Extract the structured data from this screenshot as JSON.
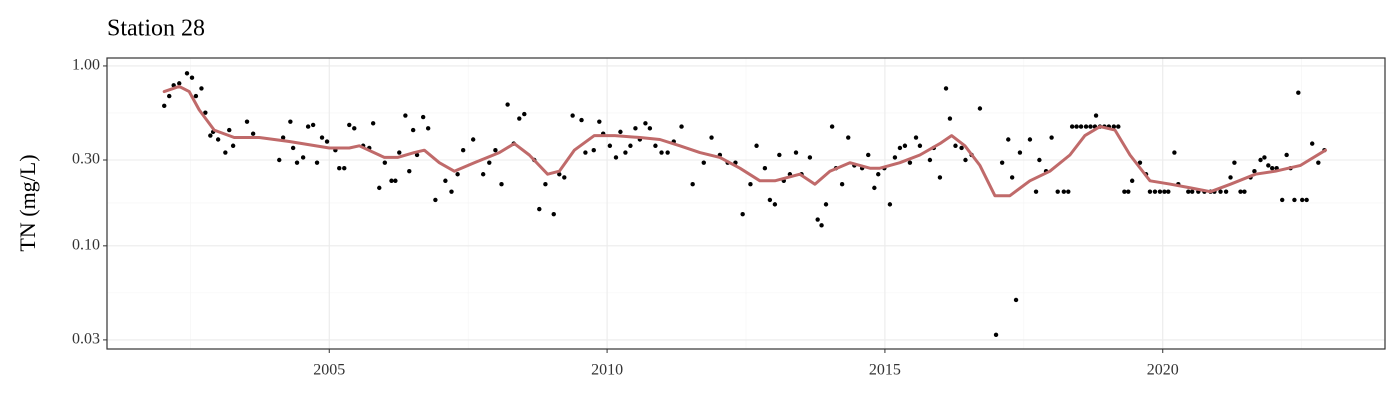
{
  "chart_data": {
    "type": "scatter",
    "title": "Station 28",
    "y_label": "TN (mg/L)",
    "log_y": true,
    "grid": true,
    "xlim": [
      2001,
      2024
    ],
    "ylim": [
      0.0267,
      1.107
    ],
    "xticks": [
      2005,
      2010,
      2015,
      2020
    ],
    "yticks": [
      {
        "value": 0.03,
        "label": "0.03"
      },
      {
        "value": 0.1,
        "label": "0.10"
      },
      {
        "value": 0.3,
        "label": "0.30"
      },
      {
        "value": 1,
        "label": "1.00"
      }
    ],
    "points": {
      "color": "#000000",
      "x": [
        2002.03,
        2002.12,
        2002.2,
        2002.3,
        2002.44,
        2002.53,
        2002.6,
        2002.7,
        2002.77,
        2002.86,
        2002.91,
        2003.0,
        2003.13,
        2003.2,
        2003.27,
        2003.52,
        2003.63,
        2004.1,
        2004.17,
        2004.3,
        2004.35,
        2004.42,
        2004.53,
        2004.62,
        2004.71,
        2004.78,
        2004.87,
        2004.96,
        2005.11,
        2005.18,
        2005.27,
        2005.36,
        2005.45,
        2005.61,
        2005.72,
        2005.79,
        2005.9,
        2006.0,
        2006.12,
        2006.19,
        2006.26,
        2006.37,
        2006.44,
        2006.51,
        2006.58,
        2006.69,
        2006.78,
        2006.91,
        2007.09,
        2007.2,
        2007.31,
        2007.41,
        2007.59,
        2007.77,
        2007.88,
        2007.99,
        2008.1,
        2008.21,
        2008.32,
        2008.42,
        2008.51,
        2008.69,
        2008.78,
        2008.89,
        2009.04,
        2009.14,
        2009.23,
        2009.38,
        2009.54,
        2009.61,
        2009.76,
        2009.86,
        2009.93,
        2010.05,
        2010.16,
        2010.24,
        2010.33,
        2010.42,
        2010.51,
        2010.59,
        2010.69,
        2010.77,
        2010.87,
        2010.98,
        2011.09,
        2011.2,
        2011.34,
        2011.54,
        2011.74,
        2011.88,
        2012.03,
        2012.17,
        2012.31,
        2012.44,
        2012.58,
        2012.69,
        2012.84,
        2012.93,
        2013.02,
        2013.1,
        2013.18,
        2013.29,
        2013.4,
        2013.5,
        2013.65,
        2013.79,
        2013.86,
        2013.94,
        2014.05,
        2014.12,
        2014.23,
        2014.34,
        2014.45,
        2014.59,
        2014.7,
        2014.81,
        2014.88,
        2014.99,
        2015.09,
        2015.18,
        2015.27,
        2015.36,
        2015.45,
        2015.56,
        2015.63,
        2015.81,
        2015.88,
        2015.99,
        2016.1,
        2016.17,
        2016.27,
        2016.38,
        2016.45,
        2016.56,
        2016.71,
        2017.0,
        2017.11,
        2017.22,
        2017.29,
        2017.36,
        2017.43,
        2017.61,
        2017.72,
        2017.78,
        2017.9,
        2018.0,
        2018.11,
        2018.22,
        2018.3,
        2018.37,
        2018.45,
        2018.53,
        2018.62,
        2018.7,
        2018.78,
        2018.8,
        2018.87,
        2018.95,
        2019.03,
        2019.12,
        2019.2,
        2019.31,
        2019.38,
        2019.45,
        2019.59,
        2019.7,
        2019.77,
        2019.86,
        2019.95,
        2020.03,
        2020.1,
        2020.21,
        2020.28,
        2020.46,
        2020.53,
        2020.64,
        2020.75,
        2020.86,
        2020.93,
        2021.04,
        2021.14,
        2021.22,
        2021.29,
        2021.4,
        2021.47,
        2021.58,
        2021.65,
        2021.76,
        2021.83,
        2021.9,
        2021.97,
        2022.05,
        2022.15,
        2022.23,
        2022.3,
        2022.37,
        2022.44,
        2022.51,
        2022.59,
        2022.69,
        2022.8,
        2022.91
      ],
      "y": [
        0.6,
        0.68,
        0.78,
        0.8,
        0.91,
        0.86,
        0.68,
        0.75,
        0.55,
        0.41,
        0.43,
        0.39,
        0.33,
        0.44,
        0.36,
        0.49,
        0.42,
        0.3,
        0.4,
        0.49,
        0.35,
        0.29,
        0.31,
        0.46,
        0.47,
        0.29,
        0.4,
        0.38,
        0.34,
        0.27,
        0.27,
        0.47,
        0.45,
        0.36,
        0.35,
        0.48,
        0.21,
        0.29,
        0.23,
        0.23,
        0.33,
        0.53,
        0.26,
        0.44,
        0.32,
        0.52,
        0.45,
        0.18,
        0.23,
        0.2,
        0.25,
        0.34,
        0.39,
        0.25,
        0.29,
        0.34,
        0.22,
        0.61,
        0.37,
        0.51,
        0.54,
        0.3,
        0.16,
        0.22,
        0.15,
        0.25,
        0.24,
        0.53,
        0.5,
        0.33,
        0.34,
        0.49,
        0.42,
        0.36,
        0.31,
        0.43,
        0.33,
        0.36,
        0.45,
        0.39,
        0.48,
        0.45,
        0.36,
        0.33,
        0.33,
        0.38,
        0.46,
        0.22,
        0.29,
        0.4,
        0.32,
        0.29,
        0.29,
        0.15,
        0.22,
        0.36,
        0.27,
        0.18,
        0.17,
        0.32,
        0.23,
        0.25,
        0.33,
        0.25,
        0.31,
        0.14,
        0.13,
        0.17,
        0.46,
        0.27,
        0.22,
        0.4,
        0.28,
        0.27,
        0.32,
        0.21,
        0.25,
        0.27,
        0.17,
        0.31,
        0.35,
        0.36,
        0.29,
        0.4,
        0.36,
        0.3,
        0.35,
        0.24,
        0.75,
        0.51,
        0.36,
        0.35,
        0.3,
        0.32,
        0.58,
        0.032,
        0.29,
        0.39,
        0.24,
        0.05,
        0.33,
        0.39,
        0.2,
        0.3,
        0.26,
        0.4,
        0.2,
        0.2,
        0.2,
        0.46,
        0.46,
        0.46,
        0.46,
        0.46,
        0.46,
        0.53,
        0.46,
        0.46,
        0.46,
        0.46,
        0.46,
        0.2,
        0.2,
        0.23,
        0.29,
        0.25,
        0.2,
        0.2,
        0.2,
        0.2,
        0.2,
        0.33,
        0.22,
        0.2,
        0.2,
        0.2,
        0.2,
        0.2,
        0.2,
        0.2,
        0.2,
        0.24,
        0.29,
        0.2,
        0.2,
        0.24,
        0.26,
        0.3,
        0.31,
        0.28,
        0.27,
        0.27,
        0.18,
        0.32,
        0.27,
        0.18,
        0.71,
        0.18,
        0.18,
        0.37,
        0.29,
        0.34
      ]
    },
    "smooth": {
      "color": "#c06a6a",
      "x": [
        2002.03,
        2002.3,
        2002.48,
        2002.66,
        2002.93,
        2003.29,
        2003.74,
        2004.28,
        2005.0,
        2005.36,
        2005.54,
        2005.99,
        2006.23,
        2006.53,
        2006.71,
        2006.98,
        2007.25,
        2007.61,
        2008.06,
        2008.33,
        2008.6,
        2008.93,
        2009.14,
        2009.41,
        2009.77,
        2010.14,
        2010.59,
        2010.95,
        2011.31,
        2011.67,
        2012.03,
        2012.39,
        2012.75,
        2013.02,
        2013.47,
        2013.74,
        2014.01,
        2014.37,
        2014.73,
        2014.91,
        2015.27,
        2015.63,
        2015.99,
        2016.2,
        2016.44,
        2016.71,
        2016.98,
        2017.25,
        2017.61,
        2017.97,
        2018.33,
        2018.6,
        2018.87,
        2019.14,
        2019.41,
        2019.77,
        2020.14,
        2020.5,
        2020.86,
        2021.22,
        2021.67,
        2022.03,
        2022.48,
        2022.93
      ],
      "y": [
        0.72,
        0.77,
        0.72,
        0.57,
        0.44,
        0.4,
        0.4,
        0.38,
        0.35,
        0.35,
        0.36,
        0.31,
        0.31,
        0.33,
        0.34,
        0.29,
        0.26,
        0.29,
        0.33,
        0.37,
        0.32,
        0.25,
        0.26,
        0.34,
        0.41,
        0.41,
        0.4,
        0.39,
        0.36,
        0.33,
        0.31,
        0.27,
        0.23,
        0.23,
        0.25,
        0.22,
        0.26,
        0.29,
        0.27,
        0.27,
        0.29,
        0.32,
        0.37,
        0.41,
        0.36,
        0.28,
        0.19,
        0.19,
        0.23,
        0.26,
        0.32,
        0.41,
        0.46,
        0.44,
        0.32,
        0.23,
        0.22,
        0.21,
        0.2,
        0.22,
        0.25,
        0.26,
        0.28,
        0.34
      ]
    }
  }
}
